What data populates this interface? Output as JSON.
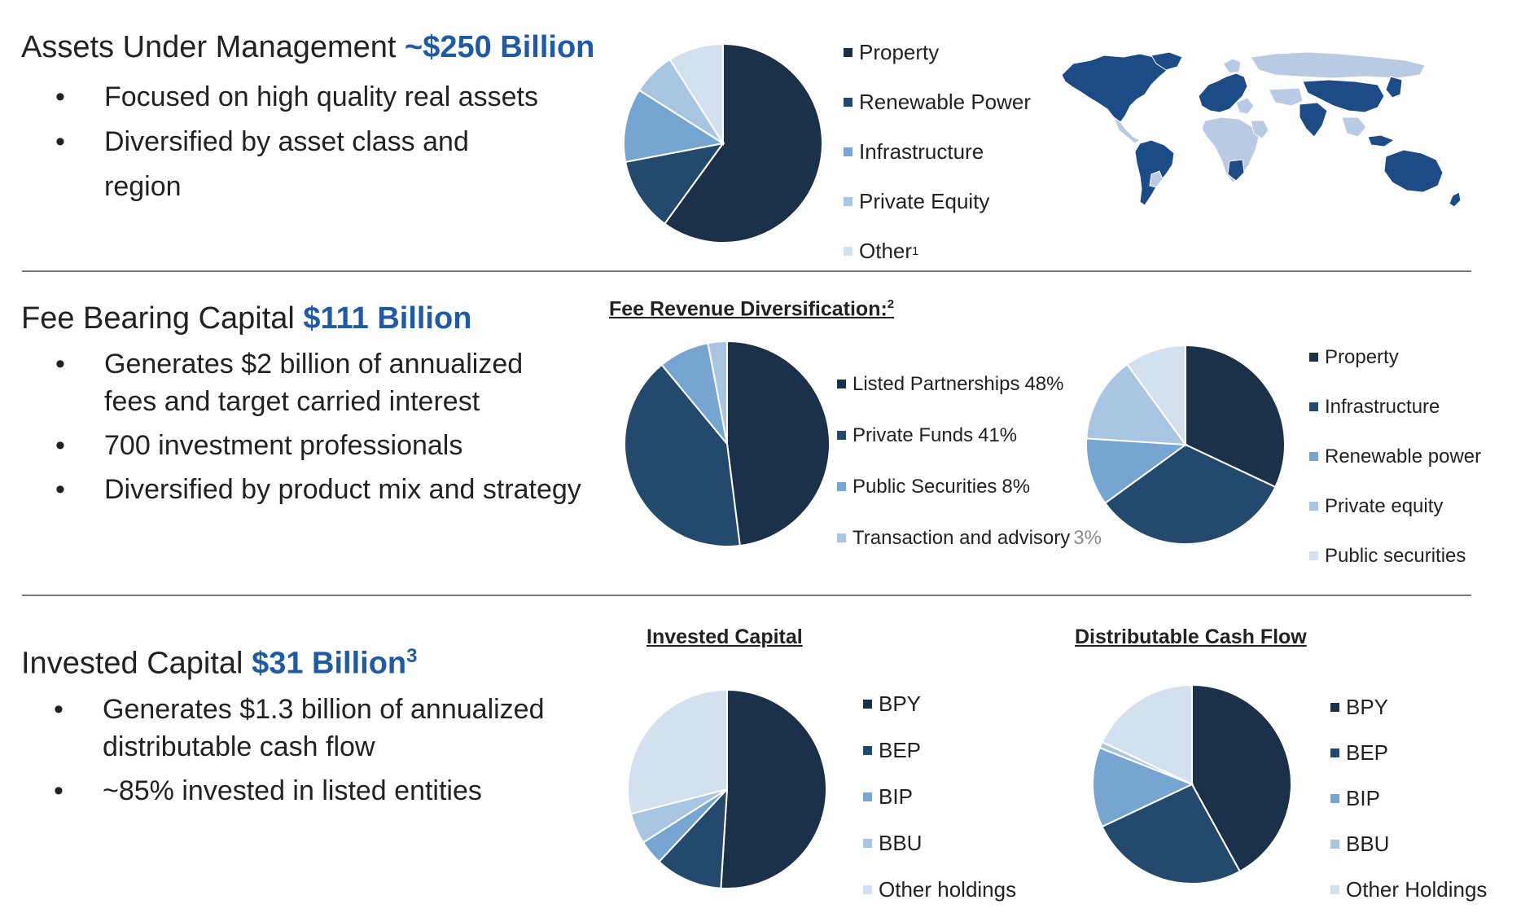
{
  "colors": {
    "c1": "#1b3149",
    "c2": "#234a6d",
    "c3": "#75a5d0",
    "c4": "#a8c6e2",
    "c5": "#d3e1ef",
    "accent": "#1f5aa6",
    "rule": "#7b7b7b",
    "map_dark": "#1d4b86",
    "map_light": "#b9cbe4"
  },
  "sections": {
    "aum": {
      "heading_text": "Assets Under Management",
      "heading_accent": "~$250 Billion",
      "bullets": [
        "Focused on high quality real assets",
        "Diversified by asset class and region"
      ],
      "map_icon": "world-map-icon"
    },
    "fbc": {
      "heading_text": "Fee Bearing Capital",
      "heading_accent": "$111 Billion",
      "bullets": [
        "Generates $2 billion of annualized fees and target carried interest",
        "700 investment professionals",
        "Diversified by product mix and strategy"
      ],
      "chart_title": "Fee Revenue Diversification:",
      "chart_title_sup": "2"
    },
    "ic": {
      "heading_text": "Invested Capital",
      "heading_accent": "$31 Billion",
      "heading_sup": "3",
      "bullets": [
        "Generates $1.3 billion of annualized distributable cash flow",
        "~85% invested in listed entities"
      ]
    }
  },
  "chart_data": [
    {
      "type": "pie",
      "id": "aum",
      "categories": [
        "Property",
        "Renewable Power",
        "Infrastructure",
        "Private Equity",
        "Other"
      ],
      "values": [
        60,
        12,
        12,
        7,
        9
      ],
      "label_sups": [
        "",
        "",
        "",
        "",
        "1"
      ]
    },
    {
      "type": "pie",
      "id": "fee-products",
      "categories": [
        "Listed Partnerships",
        "Private Funds",
        "Public Securities",
        "Transaction and advisory"
      ],
      "values": [
        48,
        41,
        8,
        3
      ],
      "percent_labels": [
        "48%",
        "41%",
        "8%",
        "3%"
      ]
    },
    {
      "type": "pie",
      "id": "fee-assets",
      "categories": [
        "Property",
        "Infrastructure",
        "Renewable power",
        "Private equity",
        "Public securities"
      ],
      "values": [
        32,
        33,
        11,
        14,
        10
      ]
    },
    {
      "type": "pie",
      "id": "invested-capital",
      "title": "Invested Capital",
      "categories": [
        "BPY",
        "BEP",
        "BIP",
        "BBU",
        "Other holdings"
      ],
      "values": [
        51,
        11,
        4,
        5,
        29
      ]
    },
    {
      "type": "pie",
      "id": "distributable-cash-flow",
      "title": "Distributable Cash Flow",
      "categories": [
        "BPY",
        "BEP",
        "BIP",
        "BBU",
        "Other Holdings"
      ],
      "values": [
        42,
        26,
        13,
        1,
        18
      ]
    }
  ]
}
